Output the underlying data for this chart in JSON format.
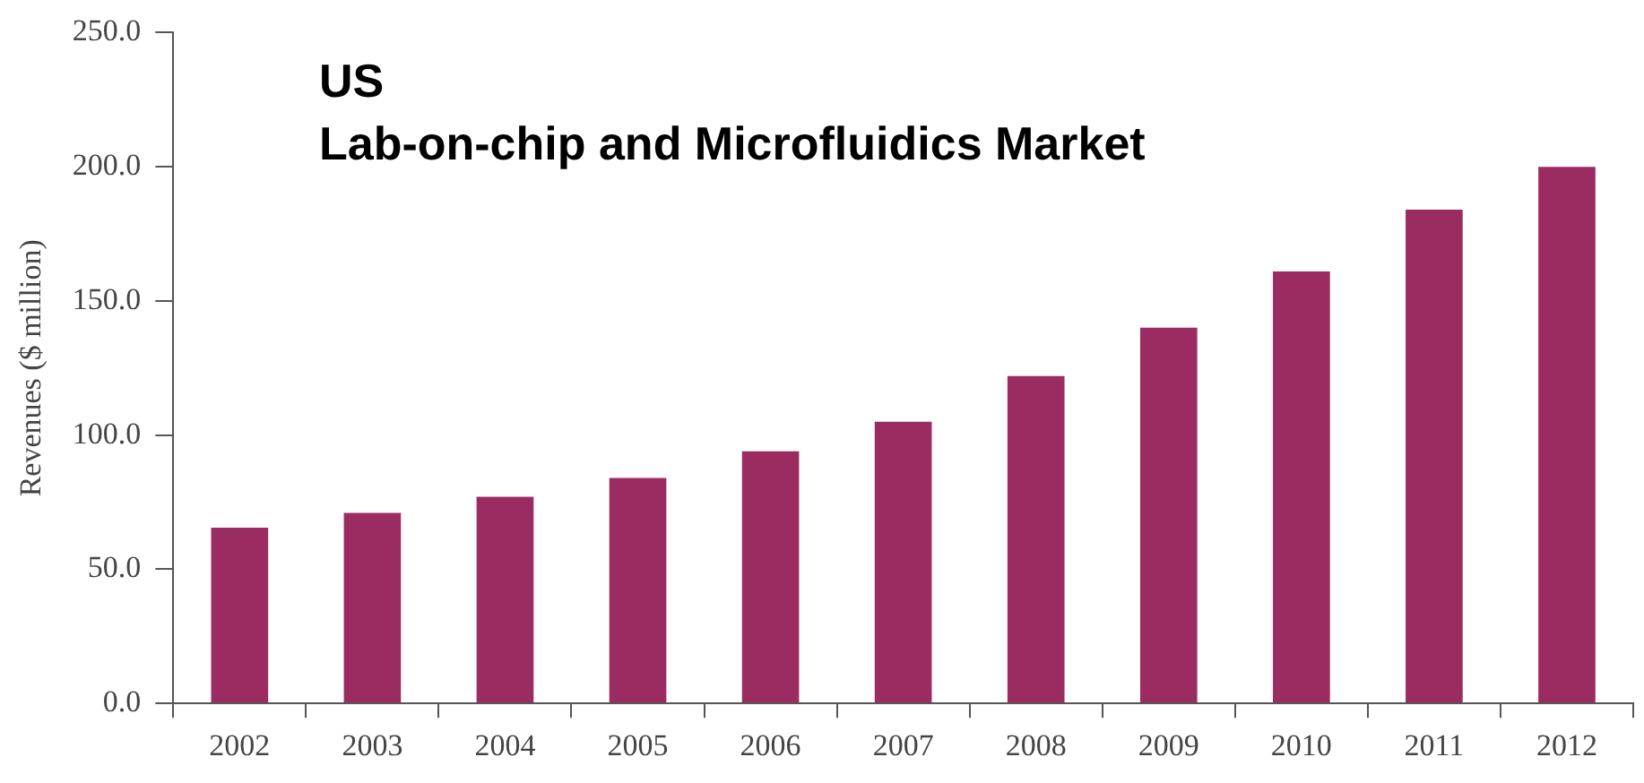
{
  "chart_data": {
    "type": "bar",
    "title": "US\nLab-on-chip and Microfluidics Market",
    "ylabel": "Revenues ($ million)",
    "categories": [
      "2002",
      "2003",
      "2004",
      "2005",
      "2006",
      "2007",
      "2008",
      "2009",
      "2010",
      "2011",
      "2012"
    ],
    "values": [
      65.5,
      71,
      77,
      84,
      94,
      105,
      122,
      140,
      161,
      184,
      200
    ],
    "color": "#9b2c61",
    "ylim": [
      0,
      250
    ],
    "yticks": [
      {
        "value": 0,
        "label": "0.0"
      },
      {
        "value": 50,
        "label": "50.0"
      },
      {
        "value": 100,
        "label": "100.0"
      },
      {
        "value": 150,
        "label": "150.0"
      },
      {
        "value": 200,
        "label": "200.0"
      },
      {
        "value": 250,
        "label": "250.0"
      }
    ],
    "grid": false,
    "legend": false
  }
}
